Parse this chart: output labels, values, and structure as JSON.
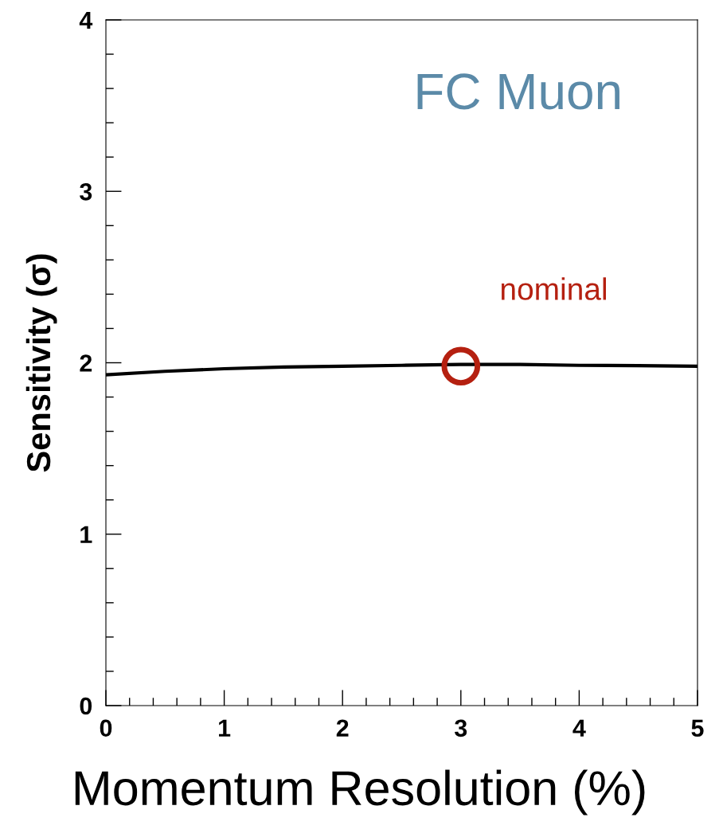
{
  "chart_data": {
    "type": "line",
    "xlabel": "Momentum Resolution (%)",
    "ylabel": "Sensitivity (σ)",
    "xlim": [
      0,
      5
    ],
    "ylim": [
      0,
      4
    ],
    "xticks": [
      0,
      1,
      2,
      3,
      4,
      5
    ],
    "yticks": [
      0,
      1,
      2,
      3,
      4
    ],
    "grid": false,
    "legend": false,
    "series": [
      {
        "color": "#000000",
        "marker": "none",
        "x": [
          0,
          0.5,
          1,
          1.5,
          2,
          2.5,
          3,
          3.5,
          4,
          4.5,
          5
        ],
        "values": [
          1.93,
          1.95,
          1.965,
          1.975,
          1.98,
          1.985,
          1.99,
          1.99,
          1.985,
          1.983,
          1.98
        ]
      },
      {
        "type": "scatter",
        "color": "#b52010",
        "marker": "circle",
        "x": [
          3
        ],
        "values": [
          1.98
        ]
      }
    ],
    "annotations": [
      "FC Muon",
      {
        "text": "nominal",
        "x": 3,
        "y": 1.98
      }
    ]
  }
}
